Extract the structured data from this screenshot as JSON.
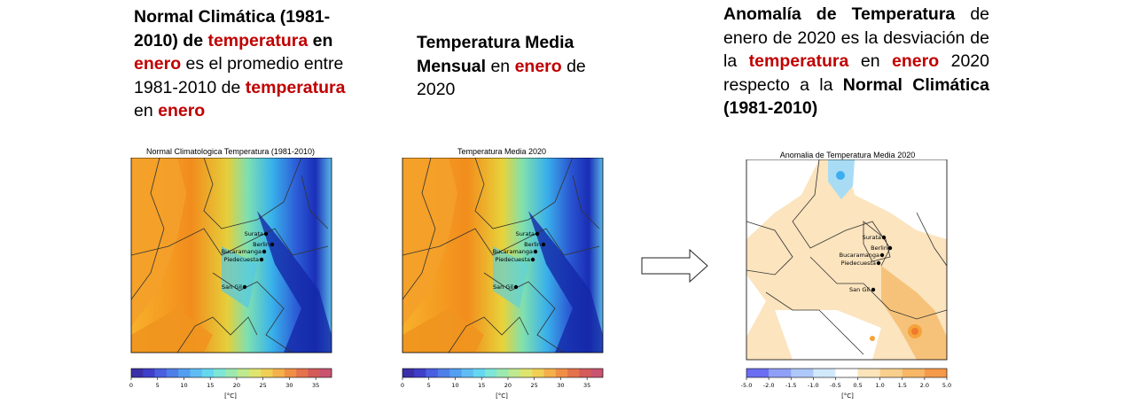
{
  "captions": {
    "left": [
      {
        "t": "Normal Climática (1981-2010)",
        "s": "b"
      },
      {
        "t": " de ",
        "s": "b"
      },
      {
        "t": "temperatura",
        "s": "r"
      },
      {
        "t": " ",
        "s": "n"
      },
      {
        "t": "en",
        "s": "b"
      },
      {
        "t": " ",
        "s": "n"
      },
      {
        "t": "enero",
        "s": "r"
      },
      {
        "t": " es el promedio entre 1981-2010 de ",
        "s": "n"
      },
      {
        "t": "temperatura",
        "s": "r"
      },
      {
        "t": " en ",
        "s": "n"
      },
      {
        "t": "enero",
        "s": "r"
      }
    ],
    "middle": [
      {
        "t": "Temperatura Media Mensual",
        "s": "b"
      },
      {
        "t": " en ",
        "s": "n"
      },
      {
        "t": "enero",
        "s": "r"
      },
      {
        "t": " de 2020",
        "s": "n"
      }
    ],
    "right": [
      {
        "t": "Anomalía de Temperatura",
        "s": "b"
      },
      {
        "t": " de enero de 2020 es la desviación de la ",
        "s": "n"
      },
      {
        "t": "temperatura",
        "s": "r"
      },
      {
        "t": " en ",
        "s": "n"
      },
      {
        "t": "enero",
        "s": "r"
      },
      {
        "t": " 2020 respecto a la ",
        "s": "n"
      },
      {
        "t": "Normal Climática (1981-2010)",
        "s": "b"
      }
    ]
  },
  "maps": {
    "normal": {
      "title": "Normal Climatologica Temperatura (1981-2010)"
    },
    "media": {
      "title": "Temperatura Media 2020"
    },
    "anomalia": {
      "title": "Anomalia de Temperatura Media 2020"
    }
  },
  "cities": [
    "Surata",
    "Berlin",
    "Bucaramanga",
    "Piedecuesta",
    "San Gil"
  ],
  "colorbars": {
    "temperature": {
      "ticks": [
        "0",
        "5",
        "10",
        "15",
        "20",
        "25",
        "30",
        "35"
      ],
      "unit": "[°C]"
    },
    "anomaly": {
      "ticks": [
        "-5.0",
        "-2.0",
        "-1.5",
        "-1.0",
        "-0.5",
        "0.5",
        "1.0",
        "1.5",
        "2.0",
        "5.0"
      ],
      "unit": "[°C]"
    }
  },
  "colors": {
    "red_highlight": "#c00000",
    "warm": "#f28c1c",
    "cold": "#1d33c8",
    "anomaly_warm": "#f8cf8e"
  },
  "arrow": {
    "icon": "right-arrow-icon"
  }
}
